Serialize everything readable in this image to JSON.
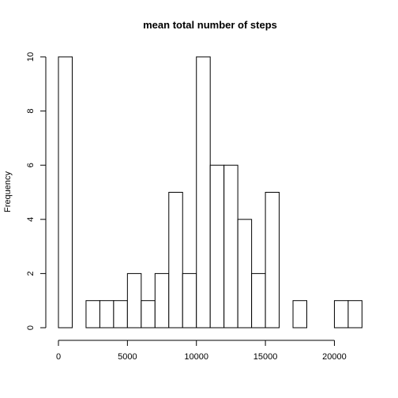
{
  "chart_data": {
    "type": "bar",
    "title": "mean total number of steps",
    "xlabel": "",
    "ylabel": "Frequency",
    "bin_width": 1000,
    "bin_starts": [
      0,
      1000,
      2000,
      3000,
      4000,
      5000,
      6000,
      7000,
      8000,
      9000,
      10000,
      11000,
      12000,
      13000,
      14000,
      15000,
      16000,
      17000,
      18000,
      19000,
      20000,
      21000
    ],
    "values": [
      10,
      0,
      1,
      1,
      1,
      2,
      1,
      2,
      5,
      2,
      10,
      6,
      6,
      4,
      2,
      5,
      0,
      1,
      0,
      0,
      1,
      1
    ],
    "xlim": [
      0,
      22000
    ],
    "ylim": [
      0,
      10
    ],
    "x_ticks": [
      "0",
      "5000",
      "10000",
      "15000",
      "20000"
    ],
    "y_ticks": [
      "0",
      "2",
      "4",
      "6",
      "8",
      "10"
    ],
    "grid": false
  }
}
